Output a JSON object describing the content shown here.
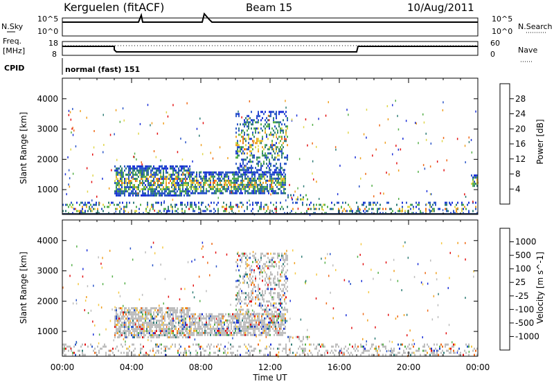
{
  "header": {
    "station": "Kerguelen (fitACF)",
    "beam": "Beam 15",
    "date": "10/Aug/2011"
  },
  "panels": {
    "nsky_label": "N.Sky",
    "nsky_ticks": [
      "10^5",
      "10^0"
    ],
    "nsearch_label": "N.Search",
    "nsearch_ticks": [
      "10^5",
      "10^0"
    ],
    "freq_label_1": "Freq.",
    "freq_label_2": "[MHz]",
    "freq_ticks": [
      "18",
      "8"
    ],
    "nave_label": "Nave",
    "nave_ticks": [
      "60",
      "0"
    ],
    "cpid_label": "CPID",
    "cpid_text": "normal (fast) 151"
  },
  "colors": {
    "power": [
      "#1a2fd8",
      "#2a55c8",
      "#2f7d76",
      "#56b04a",
      "#e0d64a",
      "#f0a020",
      "#ef6a18",
      "#e31010"
    ],
    "velocity": [
      "#e31010",
      "#ef6a18",
      "#f0a020",
      "#f5c842",
      "#bdbdbd",
      "#bdbdbd",
      "#56b04a",
      "#2f7d76",
      "#2a55c8",
      "#1a2fd8"
    ]
  },
  "chart_data": [
    {
      "type": "heatmap",
      "name": "power",
      "ylabel": "Slant Range [km]",
      "ylim": [
        180,
        4680
      ],
      "yticks": [
        "1000",
        "2000",
        "3000",
        "4000"
      ],
      "colorbar_label": "Power [dB]",
      "colorbar_ticks": [
        "4",
        "8",
        "12",
        "16",
        "20",
        "24",
        "28"
      ],
      "regions": [
        {
          "t0": 3.0,
          "t1": 7.4,
          "r0": 800,
          "r1": 1800,
          "weight": 0.7
        },
        {
          "t0": 7.4,
          "t1": 12.9,
          "r0": 850,
          "r1": 1600,
          "weight": 0.7
        },
        {
          "t0": 10.0,
          "t1": 13.0,
          "r0": 1600,
          "r1": 3600,
          "weight": 0.35
        },
        {
          "t0": 13.0,
          "t1": 14.2,
          "r0": 650,
          "r1": 850,
          "weight": 0.4
        },
        {
          "t0": 0.0,
          "t1": 24.0,
          "r0": 200,
          "r1": 600,
          "weight": 0.25
        },
        {
          "t0": 23.6,
          "t1": 24.0,
          "r0": 1100,
          "r1": 1500,
          "weight": 0.5
        }
      ]
    },
    {
      "type": "heatmap",
      "name": "velocity",
      "ylabel": "Slant Range [km]",
      "ylim": [
        180,
        4680
      ],
      "yticks": [
        "1000",
        "2000",
        "3000",
        "4000"
      ],
      "colorbar_label": "Velocity [m s^-1]",
      "colorbar_ticks": [
        "1000",
        "500",
        "100",
        "25",
        "-25",
        "-100",
        "-500",
        "-1000"
      ],
      "regions": [
        {
          "t0": 3.0,
          "t1": 7.4,
          "r0": 800,
          "r1": 1800,
          "weight": 0.7
        },
        {
          "t0": 7.4,
          "t1": 12.9,
          "r0": 850,
          "r1": 1600,
          "weight": 0.7
        },
        {
          "t0": 10.0,
          "t1": 13.0,
          "r0": 1600,
          "r1": 3600,
          "weight": 0.35
        },
        {
          "t0": 13.0,
          "t1": 14.2,
          "r0": 650,
          "r1": 850,
          "weight": 0.4
        },
        {
          "t0": 0.0,
          "t1": 24.0,
          "r0": 200,
          "r1": 600,
          "weight": 0.25
        }
      ]
    }
  ],
  "xaxis": {
    "xlabel": "Time UT",
    "xlim": [
      0,
      24
    ],
    "xticks": [
      "00:00",
      "04:00",
      "08:00",
      "12:00",
      "16:00",
      "20:00",
      "00:00"
    ]
  }
}
